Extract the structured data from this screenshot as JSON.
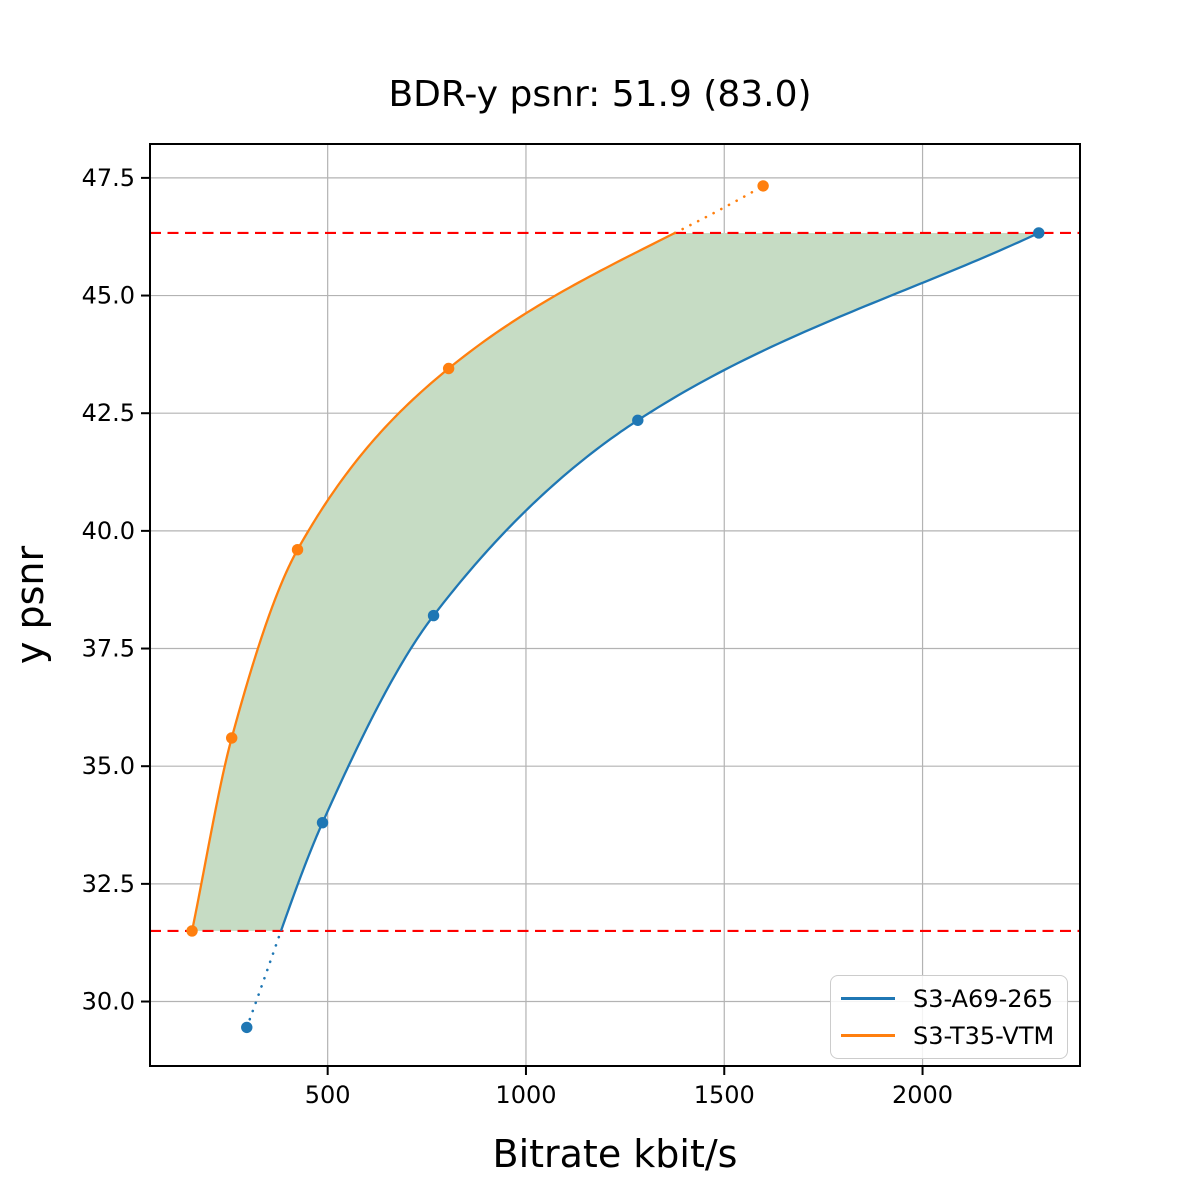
{
  "chart_data": {
    "type": "line",
    "title": "BDR-y psnr: 51.9 (83.0)",
    "xlabel": "Bitrate kbit/s",
    "ylabel": "y psnr",
    "xlim": [
      52,
      2397
    ],
    "ylim": [
      28.63,
      48.22
    ],
    "grid": true,
    "xticks": {
      "values": [
        500,
        1000,
        1500,
        2000
      ],
      "labels": [
        "500",
        "1000",
        "1500",
        "2000"
      ]
    },
    "yticks": {
      "values": [
        30.0,
        32.5,
        35.0,
        37.5,
        40.0,
        42.5,
        45.0,
        47.5
      ],
      "labels": [
        "30.0",
        "32.5",
        "35.0",
        "37.5",
        "40.0",
        "42.5",
        "45.0",
        "47.5"
      ]
    },
    "series": [
      {
        "name": "S3-A69-265",
        "color": "#1f77b4",
        "points": [
          [
            296,
            29.45
          ],
          [
            487,
            33.8
          ],
          [
            767,
            38.2
          ],
          [
            1282,
            42.35
          ],
          [
            2293,
            46.33
          ]
        ]
      },
      {
        "name": "S3-T35-VTM",
        "color": "#ff7f0e",
        "points": [
          [
            158,
            31.5
          ],
          [
            258,
            35.6
          ],
          [
            424,
            39.6
          ],
          [
            805,
            43.45
          ],
          [
            1598,
            47.33
          ]
        ]
      }
    ],
    "hlines": {
      "color": "#ff0000",
      "style": "dashed",
      "upper": 46.33,
      "lower": 31.5
    },
    "shaded_region": {
      "fill": "#c6dcc4",
      "description": "area between curves clipped to psnr 31.5..46.33"
    },
    "legend_position": "lower right"
  }
}
